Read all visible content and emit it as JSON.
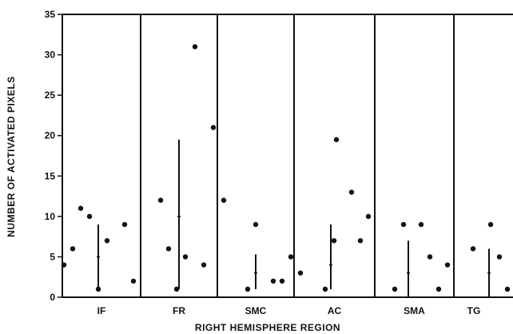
{
  "chart_data": {
    "type": "scatter",
    "xlabel": "RIGHT HEMISPHERE REGION",
    "ylabel": "NUMBER OF ACTIVATED PIXELS",
    "ylim": [
      0,
      35
    ],
    "yticks": [
      0,
      5,
      10,
      15,
      20,
      25,
      30,
      35
    ],
    "grid": false,
    "regions": [
      {
        "label": "IF",
        "points": [
          4,
          6,
          11,
          10,
          1,
          7,
          9,
          2
        ],
        "mean": 5,
        "range": [
          1,
          9
        ]
      },
      {
        "label": "FR",
        "points": [
          12,
          6,
          1,
          31,
          5,
          4,
          21
        ],
        "mean": 10,
        "range": [
          1,
          19.5
        ]
      },
      {
        "label": "SMC",
        "points": [
          12,
          1,
          9,
          2,
          2,
          5
        ],
        "mean": 3,
        "range": [
          1,
          5.3
        ]
      },
      {
        "label": "AC",
        "points": [
          3,
          1,
          7,
          19.5,
          13,
          7,
          10
        ],
        "mean": 4,
        "range": [
          1,
          9
        ]
      },
      {
        "label": "SMA",
        "points": [
          1,
          9,
          9,
          5,
          1,
          4
        ],
        "mean": 3,
        "range": [
          0,
          7
        ]
      },
      {
        "label": "TG",
        "points": [
          6,
          9,
          5,
          1
        ],
        "mean": 3,
        "range": [
          0,
          6
        ]
      }
    ]
  }
}
